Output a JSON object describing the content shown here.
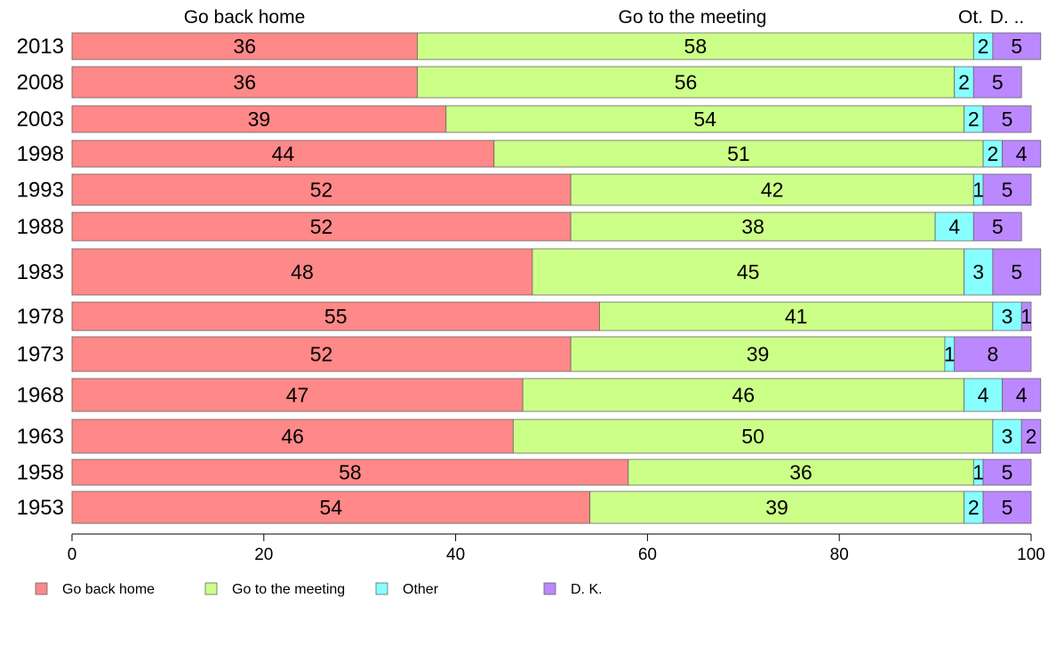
{
  "chart_data": {
    "type": "bar",
    "orientation": "horizontal",
    "stacked": true,
    "categories": [
      "2013",
      "2008",
      "2003",
      "1998",
      "1993",
      "1988",
      "1983",
      "1978",
      "1973",
      "1968",
      "1963",
      "1958",
      "1953"
    ],
    "series": [
      {
        "name": "Go back home",
        "color": "#ff8888",
        "values": [
          36,
          36,
          39,
          44,
          52,
          52,
          48,
          55,
          52,
          47,
          46,
          58,
          54
        ]
      },
      {
        "name": "Go to the meeting",
        "color": "#ccff88",
        "values": [
          58,
          56,
          54,
          51,
          42,
          38,
          45,
          41,
          39,
          46,
          50,
          36,
          39
        ]
      },
      {
        "name": "Other",
        "color": "#88ffff",
        "values": [
          2,
          2,
          2,
          2,
          1,
          4,
          3,
          3,
          1,
          4,
          3,
          1,
          2
        ]
      },
      {
        "name": "D. K.",
        "color": "#bb88ff",
        "values": [
          5,
          5,
          5,
          4,
          5,
          5,
          5,
          1,
          8,
          4,
          2,
          5,
          5
        ]
      }
    ],
    "top_labels": [
      "Go back home",
      "Go to the meeting",
      "Ot.",
      "D. .."
    ],
    "xlim": [
      0,
      100
    ],
    "xticks": [
      "0",
      "20",
      "40",
      "60",
      "80",
      "100"
    ],
    "legend": "bottom-left",
    "grid": false
  }
}
